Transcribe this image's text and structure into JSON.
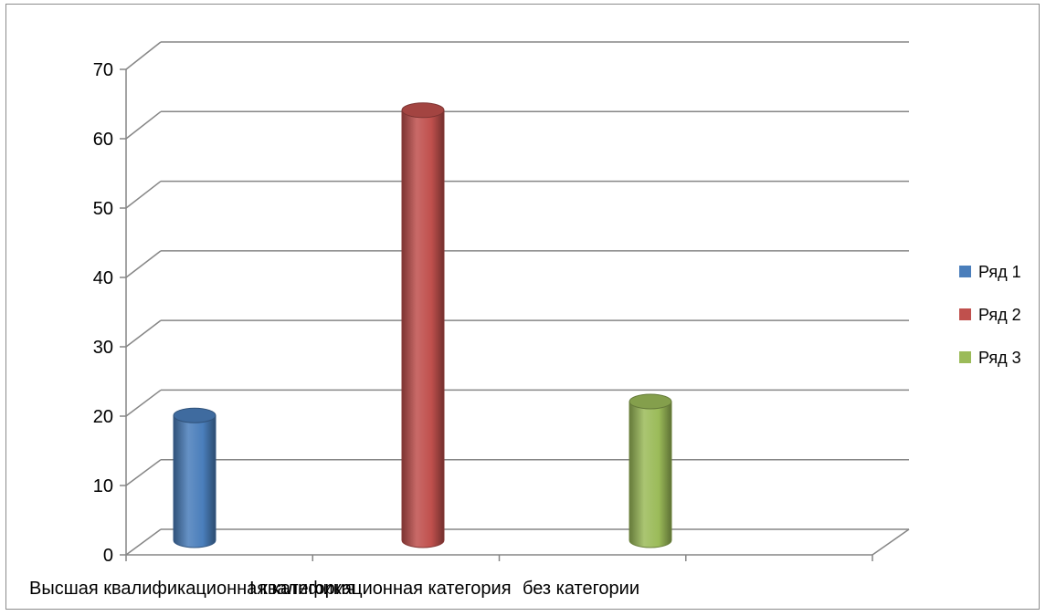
{
  "chart_data": {
    "type": "bar",
    "style": "3d-cylinder",
    "categories": [
      "Высшая квалификационная категория",
      "I квалификационная категория",
      "без категории"
    ],
    "series": [
      {
        "name": "Ряд 1",
        "values": [
          18,
          null,
          null
        ],
        "color": "#4a7ebb"
      },
      {
        "name": "Ряд 2",
        "values": [
          null,
          62,
          null
        ],
        "color": "#c0504d"
      },
      {
        "name": "Ряд 3",
        "values": [
          null,
          null,
          20
        ],
        "color": "#9bbb59"
      }
    ],
    "ylim": [
      0,
      70
    ],
    "yticks": [
      0,
      10,
      20,
      30,
      40,
      50,
      60,
      70
    ],
    "title": "",
    "xlabel": "",
    "ylabel": "",
    "grid": true,
    "legend": "right"
  }
}
